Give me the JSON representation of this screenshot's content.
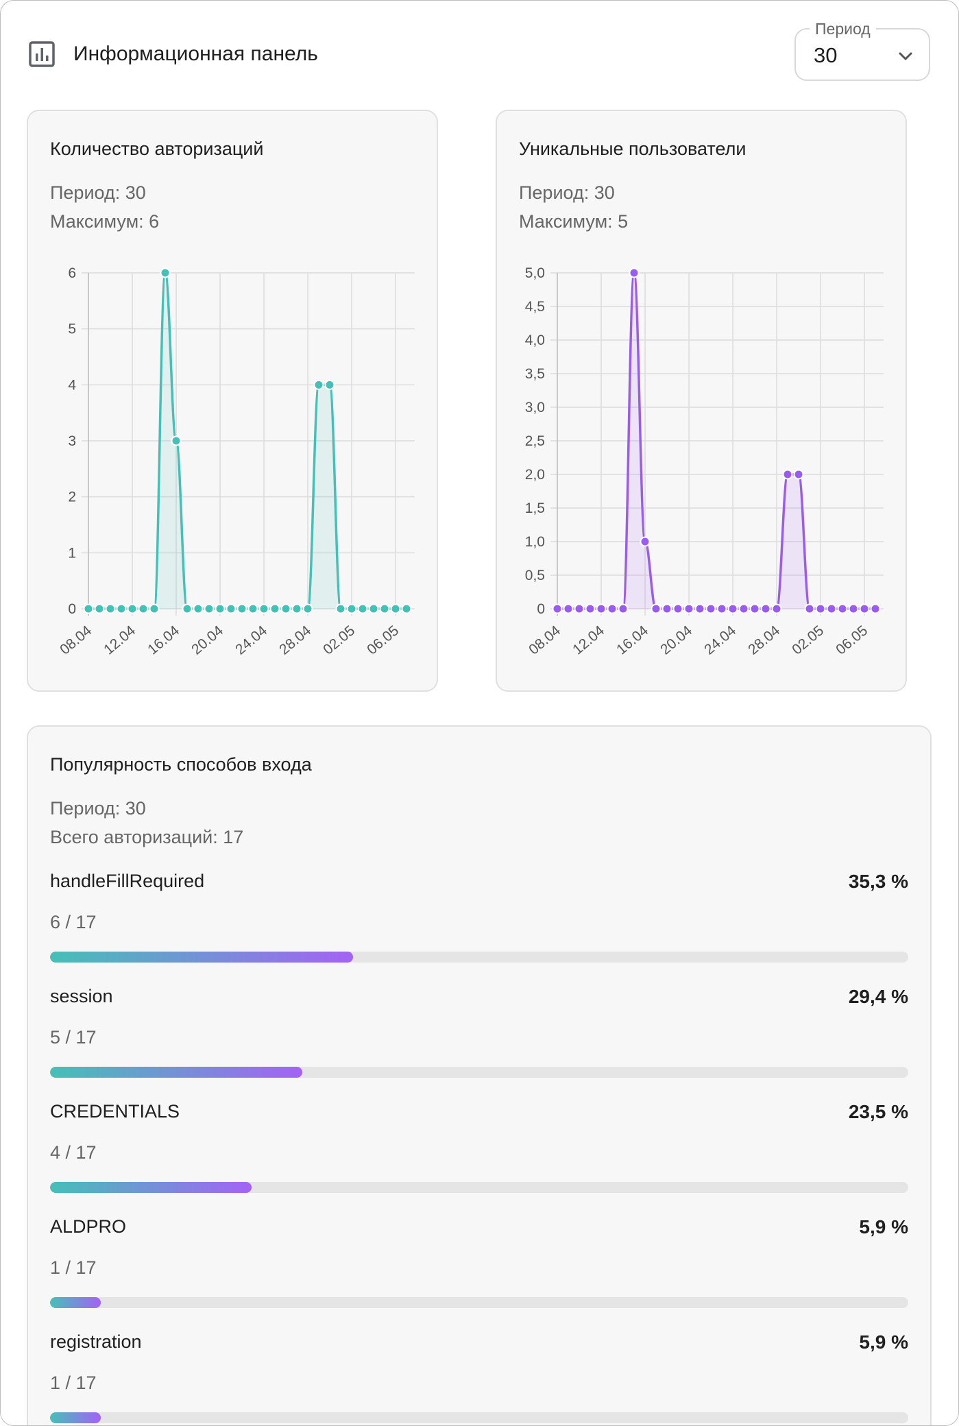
{
  "header": {
    "title": "Информационная панель",
    "icon": "bar-chart-icon"
  },
  "period_select": {
    "label": "Период",
    "value": "30"
  },
  "auth_chart": {
    "title": "Количество авторизаций",
    "period_text": "Период: 30",
    "max_text": "Максимум: 6",
    "color": "#45c0b7"
  },
  "users_chart": {
    "title": "Уникальные пользователи",
    "period_text": "Период: 30",
    "max_text": "Максимум: 5",
    "color": "#9a5cf0"
  },
  "chart_data": [
    {
      "type": "line",
      "title": "Количество авторизаций",
      "x": [
        "08.04",
        "09.04",
        "10.04",
        "11.04",
        "12.04",
        "13.04",
        "14.04",
        "15.04",
        "16.04",
        "17.04",
        "18.04",
        "19.04",
        "20.04",
        "21.04",
        "22.04",
        "23.04",
        "24.04",
        "25.04",
        "26.04",
        "27.04",
        "28.04",
        "29.04",
        "30.04",
        "01.05",
        "02.05",
        "03.05",
        "04.05",
        "05.05",
        "06.05",
        "07.05"
      ],
      "xticks": [
        "08.04",
        "12.04",
        "16.04",
        "20.04",
        "24.04",
        "28.04",
        "02.05",
        "06.05"
      ],
      "values": [
        0,
        0,
        0,
        0,
        0,
        0,
        0,
        6,
        3,
        0,
        0,
        0,
        0,
        0,
        0,
        0,
        0,
        0,
        0,
        0,
        0,
        4,
        4,
        0,
        0,
        0,
        0,
        0,
        0,
        0
      ],
      "yticks": [
        "0",
        "1",
        "2",
        "3",
        "4",
        "5",
        "6"
      ],
      "ylim": [
        0,
        6
      ],
      "fill": true,
      "grid": true,
      "color": "#45c0b7"
    },
    {
      "type": "line",
      "title": "Уникальные пользователи",
      "x": [
        "08.04",
        "09.04",
        "10.04",
        "11.04",
        "12.04",
        "13.04",
        "14.04",
        "15.04",
        "16.04",
        "17.04",
        "18.04",
        "19.04",
        "20.04",
        "21.04",
        "22.04",
        "23.04",
        "24.04",
        "25.04",
        "26.04",
        "27.04",
        "28.04",
        "29.04",
        "30.04",
        "01.05",
        "02.05",
        "03.05",
        "04.05",
        "05.05",
        "06.05",
        "07.05"
      ],
      "xticks": [
        "08.04",
        "12.04",
        "16.04",
        "20.04",
        "24.04",
        "28.04",
        "02.05",
        "06.05"
      ],
      "values": [
        0,
        0,
        0,
        0,
        0,
        0,
        0,
        5,
        1,
        0,
        0,
        0,
        0,
        0,
        0,
        0,
        0,
        0,
        0,
        0,
        0,
        2,
        2,
        0,
        0,
        0,
        0,
        0,
        0,
        0
      ],
      "yticks": [
        "0",
        "0,5",
        "1,0",
        "1,5",
        "2,0",
        "2,5",
        "3,0",
        "3,5",
        "4,0",
        "4,5",
        "5,0"
      ],
      "ylim": [
        0,
        5
      ],
      "fill": true,
      "grid": true,
      "color": "#9a5cf0"
    }
  ],
  "methods": {
    "title": "Популярность способов входа",
    "period_text": "Период: 30",
    "total_text": "Всего авторизаций: 17",
    "items": [
      {
        "name": "handleFillRequired",
        "percent": "35,3 %",
        "count": "6 / 17",
        "fraction": 0.353
      },
      {
        "name": "session",
        "percent": "29,4 %",
        "count": "5 / 17",
        "fraction": 0.294
      },
      {
        "name": "CREDENTIALS",
        "percent": "23,5 %",
        "count": "4 / 17",
        "fraction": 0.235
      },
      {
        "name": "ALDPRO",
        "percent": "5,9 %",
        "count": "1 / 17",
        "fraction": 0.059
      },
      {
        "name": "registration",
        "percent": "5,9 %",
        "count": "1 / 17",
        "fraction": 0.059
      }
    ]
  },
  "colors": {
    "teal": "#45c0b7",
    "purple": "#9a5cf0",
    "track": "#e5e5e5"
  }
}
